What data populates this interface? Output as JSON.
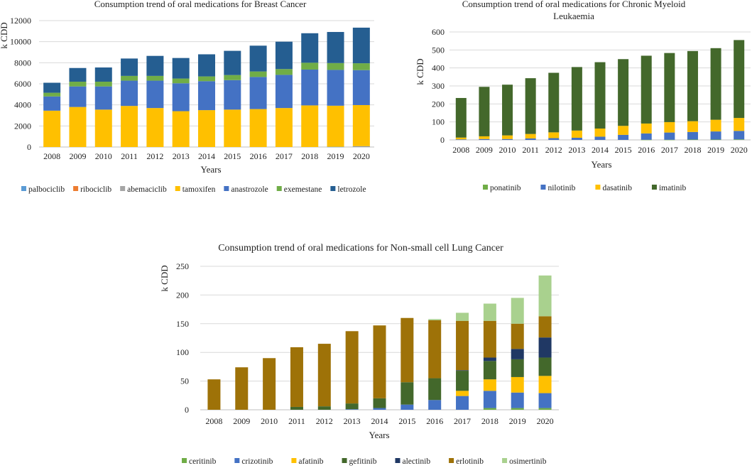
{
  "chart_data": [
    {
      "type": "bar",
      "stacked": true,
      "title": "Consumption trend of oral medications for Breast Cancer",
      "xlabel": "Years",
      "ylabel": "k CDD",
      "ylim": [
        0,
        12000
      ],
      "yticks": [
        0,
        2000,
        4000,
        6000,
        8000,
        10000,
        12000
      ],
      "grid": true,
      "legend_position": "bottom",
      "categories": [
        "2008",
        "2009",
        "2010",
        "2011",
        "2012",
        "2013",
        "2014",
        "2015",
        "2016",
        "2017",
        "2018",
        "2019",
        "2020"
      ],
      "series": [
        {
          "name": "palbociclib",
          "color": "#5b9bd5",
          "values": [
            0,
            0,
            0,
            0,
            0,
            0,
            0,
            0,
            0,
            0,
            0,
            20,
            60
          ]
        },
        {
          "name": "ribociclib",
          "color": "#ed7d31",
          "values": [
            0,
            0,
            0,
            0,
            0,
            0,
            0,
            0,
            0,
            0,
            0,
            0,
            10
          ]
        },
        {
          "name": "abemaciclib",
          "color": "#a5a5a5",
          "values": [
            0,
            0,
            0,
            0,
            0,
            0,
            0,
            0,
            0,
            0,
            0,
            0,
            10
          ]
        },
        {
          "name": "tamoxifen",
          "color": "#ffc000",
          "values": [
            3450,
            3800,
            3550,
            3900,
            3700,
            3400,
            3500,
            3550,
            3600,
            3700,
            3950,
            3900,
            3900
          ]
        },
        {
          "name": "anastrozole",
          "color": "#4472c4",
          "values": [
            1350,
            1950,
            2200,
            2400,
            2600,
            2650,
            2750,
            2800,
            3050,
            3150,
            3400,
            3400,
            3320
          ]
        },
        {
          "name": "exemestane",
          "color": "#70ad47",
          "values": [
            350,
            450,
            450,
            450,
            450,
            450,
            450,
            480,
            520,
            550,
            650,
            650,
            650
          ]
        },
        {
          "name": "letrozole",
          "color": "#255e91",
          "values": [
            950,
            1300,
            1350,
            1650,
            1900,
            1950,
            2100,
            2300,
            2450,
            2600,
            2800,
            2950,
            3380
          ]
        }
      ]
    },
    {
      "type": "bar",
      "stacked": true,
      "title": "Consumption trend of oral medications for Chronic Myeloid Leukaemia",
      "title_lines": [
        "Consumption trend of oral medications for Chronic Myeloid",
        "Leukaemia"
      ],
      "xlabel": "Years",
      "ylabel": "k CDD",
      "ylim": [
        0,
        600
      ],
      "yticks": [
        0,
        100,
        200,
        300,
        400,
        500,
        600
      ],
      "grid": true,
      "legend_position": "bottom",
      "categories": [
        "2008",
        "2009",
        "2010",
        "2011",
        "2012",
        "2013",
        "2014",
        "2015",
        "2016",
        "2017",
        "2018",
        "2019",
        "2020"
      ],
      "series": [
        {
          "name": "ponatinib",
          "color": "#70ad47",
          "values": [
            0,
            0,
            0,
            0,
            0,
            0,
            0,
            0,
            1,
            1,
            2,
            2,
            3
          ]
        },
        {
          "name": "nilotinib",
          "color": "#4472c4",
          "values": [
            3,
            5,
            5,
            8,
            10,
            12,
            18,
            28,
            35,
            40,
            42,
            45,
            47
          ]
        },
        {
          "name": "dasatinib",
          "color": "#ffc000",
          "values": [
            10,
            15,
            20,
            25,
            32,
            40,
            45,
            50,
            55,
            58,
            60,
            65,
            72
          ]
        },
        {
          "name": "imatinib",
          "color": "#43682b",
          "values": [
            220,
            275,
            282,
            310,
            331,
            353,
            369,
            371,
            377,
            384,
            390,
            398,
            433
          ]
        }
      ]
    },
    {
      "type": "bar",
      "stacked": true,
      "title": "Consumption trend of oral medications for Non-small cell Lung Cancer",
      "xlabel": "Years",
      "ylabel": "k CDD",
      "ylim": [
        0,
        250
      ],
      "yticks": [
        0,
        50,
        100,
        150,
        200,
        250
      ],
      "grid": true,
      "legend_position": "bottom",
      "categories": [
        "2008",
        "2009",
        "2010",
        "2011",
        "2012",
        "2013",
        "2014",
        "2015",
        "2016",
        "2017",
        "2018",
        "2019",
        "2020"
      ],
      "series": [
        {
          "name": "ceritinib",
          "color": "#70ad47",
          "values": [
            0,
            0,
            0,
            0,
            0,
            0,
            0,
            0,
            0,
            0,
            3,
            3,
            3
          ]
        },
        {
          "name": "crizotinib",
          "color": "#4472c4",
          "values": [
            0,
            0,
            0,
            0,
            0,
            1,
            3,
            9,
            17,
            24,
            30,
            27,
            26
          ]
        },
        {
          "name": "afatinib",
          "color": "#ffc000",
          "values": [
            0,
            0,
            0,
            0,
            0,
            0,
            0,
            0,
            0,
            9,
            20,
            27,
            30
          ]
        },
        {
          "name": "gefitinib",
          "color": "#43682b",
          "values": [
            0,
            0,
            0,
            5,
            6,
            10,
            17,
            39,
            38,
            35,
            32,
            31,
            32
          ]
        },
        {
          "name": "alectinib",
          "color": "#203864",
          "values": [
            0,
            0,
            0,
            0,
            0,
            0,
            0,
            0,
            0,
            1,
            6,
            18,
            35
          ]
        },
        {
          "name": "erlotinib",
          "color": "#9e7208",
          "values": [
            53,
            74,
            90,
            104,
            109,
            126,
            127,
            112,
            101,
            86,
            64,
            44,
            37
          ]
        },
        {
          "name": "osimertinib",
          "color": "#a9d18e",
          "values": [
            0,
            0,
            0,
            0,
            0,
            0,
            0,
            0,
            2,
            14,
            30,
            45,
            71
          ]
        }
      ]
    }
  ]
}
